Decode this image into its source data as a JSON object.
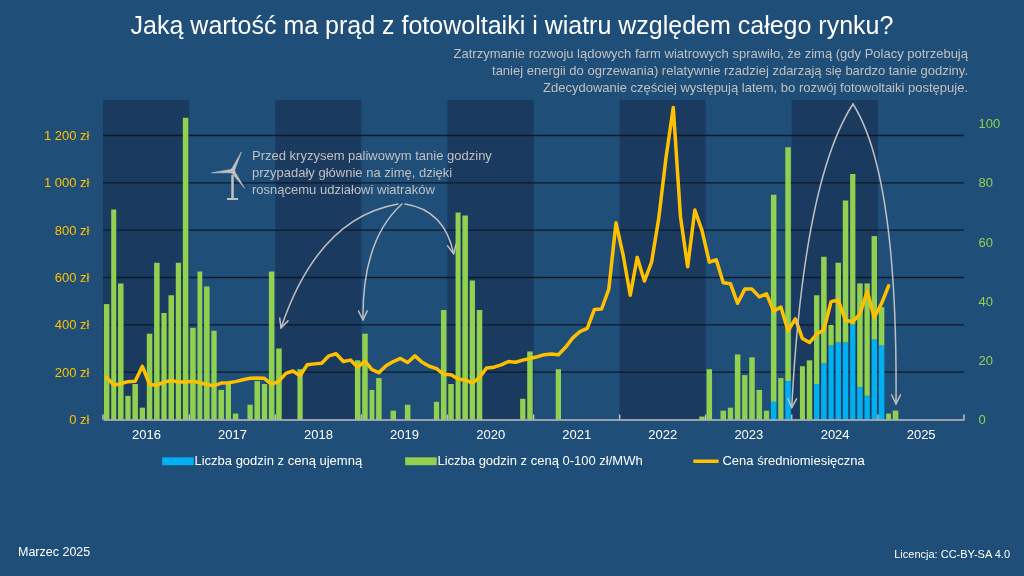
{
  "chart_data": {
    "type": "bar",
    "title": "Jaką wartość ma prąd z fotowoltaiki i wiatru względem całego rynku?",
    "x": [
      "2016-01",
      "2016-02",
      "2016-03",
      "2016-04",
      "2016-05",
      "2016-06",
      "2016-07",
      "2016-08",
      "2016-09",
      "2016-10",
      "2016-11",
      "2016-12",
      "2017-01",
      "2017-02",
      "2017-03",
      "2017-04",
      "2017-05",
      "2017-06",
      "2017-07",
      "2017-08",
      "2017-09",
      "2017-10",
      "2017-11",
      "2017-12",
      "2018-01",
      "2018-02",
      "2018-03",
      "2018-04",
      "2018-05",
      "2018-06",
      "2018-07",
      "2018-08",
      "2018-09",
      "2018-10",
      "2018-11",
      "2018-12",
      "2019-01",
      "2019-02",
      "2019-03",
      "2019-04",
      "2019-05",
      "2019-06",
      "2019-07",
      "2019-08",
      "2019-09",
      "2019-10",
      "2019-11",
      "2019-12",
      "2020-01",
      "2020-02",
      "2020-03",
      "2020-04",
      "2020-05",
      "2020-06",
      "2020-07",
      "2020-08",
      "2020-09",
      "2020-10",
      "2020-11",
      "2020-12",
      "2021-01",
      "2021-02",
      "2021-03",
      "2021-04",
      "2021-05",
      "2021-06",
      "2021-07",
      "2021-08",
      "2021-09",
      "2021-10",
      "2021-11",
      "2021-12",
      "2022-01",
      "2022-02",
      "2022-03",
      "2022-04",
      "2022-05",
      "2022-06",
      "2022-07",
      "2022-08",
      "2022-09",
      "2022-10",
      "2022-11",
      "2022-12",
      "2023-01",
      "2023-02",
      "2023-03",
      "2023-04",
      "2023-05",
      "2023-06",
      "2023-07",
      "2023-08",
      "2023-09",
      "2023-10",
      "2023-11",
      "2023-12",
      "2024-01",
      "2024-02",
      "2024-03",
      "2024-04",
      "2024-05",
      "2024-06",
      "2024-07",
      "2024-08",
      "2024-09",
      "2024-10",
      "2024-11",
      "2024-12",
      "2025-01",
      "2025-02",
      "2025-03"
    ],
    "xlim": [
      "2016-01",
      "2026-01"
    ],
    "xticks": [
      {
        "value": "2016-01",
        "label": null
      },
      {
        "value": "2016-07",
        "label": "2016"
      },
      {
        "value": "2017-01",
        "label": null
      },
      {
        "value": "2017-07",
        "label": "2017"
      },
      {
        "value": "2018-01",
        "label": null
      },
      {
        "value": "2018-07",
        "label": "2018"
      },
      {
        "value": "2019-01",
        "label": null
      },
      {
        "value": "2019-07",
        "label": "2019"
      },
      {
        "value": "2020-01",
        "label": null
      },
      {
        "value": "2020-07",
        "label": "2020"
      },
      {
        "value": "2021-01",
        "label": null
      },
      {
        "value": "2021-07",
        "label": "2021"
      },
      {
        "value": "2022-01",
        "label": null
      },
      {
        "value": "2022-07",
        "label": "2022"
      },
      {
        "value": "2023-01",
        "label": null
      },
      {
        "value": "2023-07",
        "label": "2023"
      },
      {
        "value": "2024-01",
        "label": null
      },
      {
        "value": "2024-07",
        "label": "2024"
      },
      {
        "value": "2025-01",
        "label": null
      },
      {
        "value": "2025-07",
        "label": "2025"
      },
      {
        "value": "2026-01",
        "label": null
      }
    ],
    "ylim": [
      0,
      1350
    ],
    "yticks": [
      {
        "value": 0,
        "label": "0 zł"
      },
      {
        "value": 200,
        "label": "200 zł"
      },
      {
        "value": 400,
        "label": "400 zł"
      },
      {
        "value": 600,
        "label": "600 zł"
      },
      {
        "value": 800,
        "label": "800 zł"
      },
      {
        "value": 1000,
        "label": "1 000 zł"
      },
      {
        "value": 1200,
        "label": "1 200 zł"
      }
    ],
    "y2lim": [
      0,
      108
    ],
    "y2ticks": [
      0,
      20,
      40,
      60,
      80,
      100
    ],
    "stacked": true,
    "grid": "y",
    "legend": "bottom",
    "series": [
      {
        "name": "Liczba godzin z ceną ujemną",
        "type": "bar",
        "axis": "y2",
        "color": "#00b0f0",
        "values": [
          null,
          null,
          null,
          null,
          null,
          null,
          null,
          null,
          null,
          null,
          null,
          null,
          null,
          null,
          null,
          null,
          null,
          null,
          null,
          null,
          null,
          null,
          null,
          null,
          null,
          null,
          null,
          null,
          null,
          null,
          null,
          null,
          null,
          null,
          null,
          null,
          null,
          null,
          null,
          null,
          null,
          null,
          null,
          null,
          null,
          null,
          null,
          null,
          null,
          null,
          null,
          null,
          null,
          null,
          null,
          null,
          null,
          null,
          null,
          null,
          null,
          null,
          null,
          null,
          null,
          null,
          null,
          null,
          null,
          null,
          null,
          null,
          null,
          null,
          null,
          null,
          null,
          null,
          null,
          null,
          null,
          null,
          null,
          null,
          null,
          null,
          null,
          null,
          null,
          null,
          null,
          null,
          null,
          6,
          null,
          13,
          null,
          null,
          null,
          12,
          19,
          25,
          26,
          26,
          32,
          11,
          8,
          27,
          25,
          null,
          null
        ]
      },
      {
        "name": "Liczba godzin z ceną 0-100 zł/MWh",
        "type": "bar",
        "axis": "y2",
        "color": "#92d050",
        "values": [
          39,
          71,
          46,
          8,
          12,
          4,
          29,
          53,
          36,
          42,
          53,
          102,
          31,
          50,
          45,
          30,
          10,
          12,
          2,
          null,
          5,
          13,
          12,
          50,
          24,
          null,
          null,
          17,
          null,
          null,
          null,
          null,
          null,
          null,
          null,
          20,
          29,
          10,
          14,
          null,
          3,
          null,
          5,
          null,
          null,
          null,
          6,
          37,
          12,
          70,
          69,
          47,
          37,
          null,
          null,
          null,
          null,
          null,
          7,
          23,
          null,
          null,
          null,
          17,
          null,
          null,
          null,
          null,
          null,
          null,
          null,
          null,
          null,
          null,
          null,
          null,
          null,
          null,
          null,
          null,
          null,
          null,
          null,
          1,
          17,
          null,
          3,
          4,
          22,
          15,
          21,
          10,
          3,
          70,
          14,
          79,
          null,
          18,
          20,
          30,
          36,
          7,
          27,
          48,
          51,
          35,
          38,
          35,
          13,
          2,
          3
        ]
      },
      {
        "name": "Cena średniomiesięczna",
        "type": "line",
        "axis": "y",
        "color": "#ffc000",
        "values": [
          178,
          145,
          151,
          160,
          162,
          225,
          148,
          145,
          158,
          165,
          158,
          158,
          162,
          155,
          148,
          143,
          154,
          155,
          160,
          168,
          174,
          175,
          174,
          148,
          162,
          195,
          205,
          185,
          231,
          235,
          238,
          269,
          278,
          245,
          251,
          221,
          247,
          211,
          198,
          227,
          245,
          258,
          241,
          269,
          242,
          225,
          215,
          191,
          189,
          171,
          167,
          154,
          178,
          218,
          221,
          231,
          245,
          242,
          251,
          258,
          265,
          274,
          277,
          274,
          305,
          345,
          371,
          385,
          465,
          467,
          551,
          831,
          691,
          525,
          685,
          585,
          665,
          851,
          1105,
          1318,
          858,
          645,
          885,
          798,
          665,
          675,
          578,
          574,
          491,
          551,
          551,
          518,
          531,
          458,
          475,
          375,
          425,
          342,
          325,
          361,
          378,
          498,
          505,
          418,
          414,
          445,
          542,
          431,
          491,
          565,
          null
        ]
      }
    ],
    "bands": [
      {
        "axis": "x",
        "from": "2016-01",
        "to": "2017-01",
        "color": "#1b3a5f"
      },
      {
        "axis": "x",
        "from": "2018-01",
        "to": "2019-01",
        "color": "#1b3a5f"
      },
      {
        "axis": "x",
        "from": "2020-01",
        "to": "2021-01",
        "color": "#1b3a5f"
      },
      {
        "axis": "x",
        "from": "2022-01",
        "to": "2023-01",
        "color": "#1b3a5f"
      },
      {
        "axis": "x",
        "from": "2024-01",
        "to": "2025-01",
        "color": "#1b3a5f"
      }
    ],
    "annotations": [
      "Zatrzymanie rozwoju lądowych farm wiatrowych sprawiło, że zimą (gdy Polacy potrzebują taniej energii do ogrzewania) relatywnie rzadziej zdarzają się bardzo tanie godziny.",
      {
        "text": "Zdecydowanie częściej występują latem, bo rozwój fotowoltaiki postępuje.",
        "x": "2024-01",
        "y": 50
      },
      {
        "text": "Przed kryzysem paliwowym tanie godziny przypadały głównie na zimę, dzięki rosnącemu udziałowi wiatraków",
        "x": "2020-02",
        "y": 700
      },
      "Marzec 2025",
      "Licencja: CC-BY-SA 4.0"
    ]
  }
}
